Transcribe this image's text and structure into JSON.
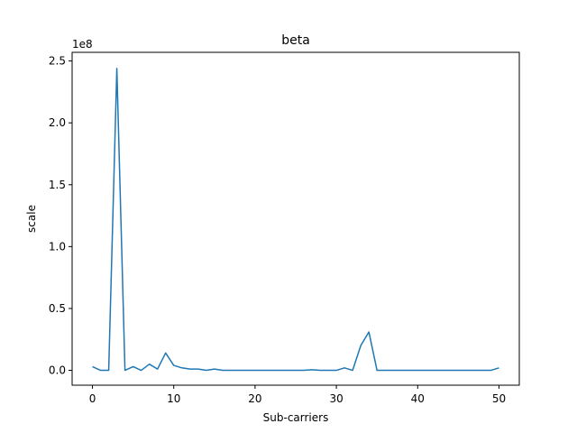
{
  "chart_data": {
    "type": "line",
    "title": "beta",
    "xlabel": "Sub-carriers",
    "ylabel": "scale",
    "y_multiplier_label": "1e8",
    "xlim": [
      -2.5,
      52.5
    ],
    "ylim": [
      -0.12,
      2.57
    ],
    "xticks": [
      0,
      10,
      20,
      30,
      40,
      50
    ],
    "xtick_labels": [
      "0",
      "10",
      "20",
      "30",
      "40",
      "50"
    ],
    "yticks": [
      0.0,
      0.5,
      1.0,
      1.5,
      2.0,
      2.5
    ],
    "ytick_labels": [
      "0.0",
      "0.5",
      "1.0",
      "1.5",
      "2.0",
      "2.5"
    ],
    "grid": false,
    "series": [
      {
        "color": "#1f77b4",
        "x": [
          0,
          1,
          2,
          3,
          4,
          5,
          6,
          7,
          8,
          9,
          10,
          11,
          12,
          13,
          14,
          15,
          16,
          17,
          18,
          19,
          20,
          21,
          22,
          23,
          24,
          25,
          26,
          27,
          28,
          29,
          30,
          31,
          32,
          33,
          34,
          35,
          36,
          37,
          38,
          39,
          40,
          41,
          42,
          43,
          44,
          45,
          46,
          47,
          48,
          49,
          50
        ],
        "y": [
          0.03,
          0.0,
          0.0,
          2.44,
          0.0,
          0.03,
          0.0,
          0.05,
          0.01,
          0.14,
          0.04,
          0.02,
          0.01,
          0.01,
          0.0,
          0.01,
          0.0,
          0.0,
          0.0,
          0.0,
          0.0,
          0.0,
          0.0,
          0.0,
          0.0,
          0.0,
          0.0,
          0.005,
          0.0,
          0.0,
          0.0,
          0.02,
          0.0,
          0.2,
          0.31,
          0.0,
          0.0,
          0.0,
          0.0,
          0.0,
          0.0,
          0.0,
          0.0,
          0.0,
          0.0,
          0.0,
          0.0,
          0.0,
          0.0,
          0.0,
          0.02
        ]
      }
    ]
  }
}
